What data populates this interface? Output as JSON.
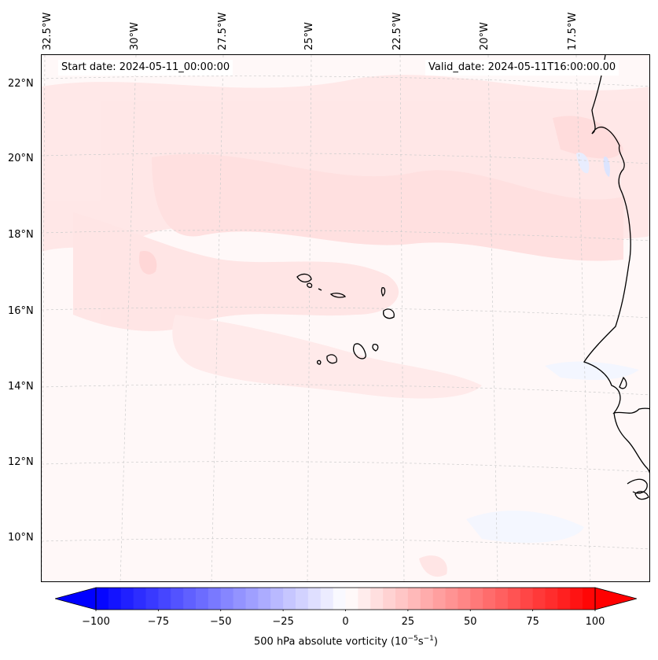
{
  "header": {
    "start_date": "Start date: 2024-05-11_00:00:00",
    "valid_date": "Valid_date: 2024-05-11T16:00:00.00"
  },
  "axes": {
    "lat_labels": [
      "22°N",
      "20°N",
      "18°N",
      "16°N",
      "14°N",
      "12°N",
      "10°N"
    ],
    "lon_labels": [
      "32.5°W",
      "30°W",
      "27.5°W",
      "25°W",
      "22.5°W",
      "20°W",
      "17.5°W"
    ]
  },
  "colorbar": {
    "label": "500 hPa absolute vorticity (10",
    "label_exp1": "−5",
    "label_mid": "s",
    "label_exp2": "−1",
    "label_end": ")",
    "ticks": [
      "−100",
      "−75",
      "−50",
      "−25",
      "0",
      "25",
      "50",
      "75",
      "100"
    ],
    "min": -100,
    "max": 100,
    "step": 5,
    "colors": {
      "neg_max": "#0000ff",
      "zero": "#ffffff",
      "pos_max": "#ff0000"
    }
  },
  "map": {
    "region": "Cape Verde / West African coast",
    "coastline_color": "#000000",
    "gridline_color": "#cccccc"
  }
}
